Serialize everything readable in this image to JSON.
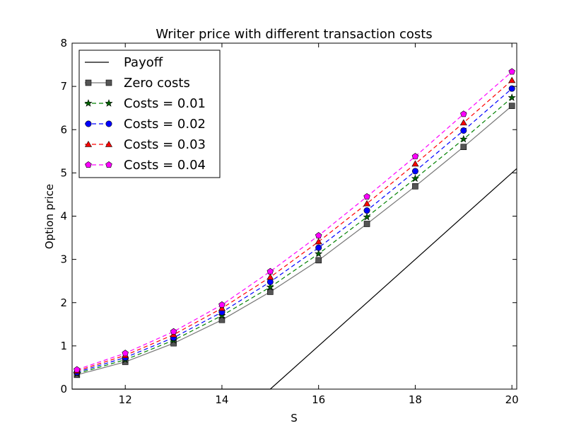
{
  "chart_data": {
    "type": "line",
    "title": "Writer price with different transaction costs",
    "xlabel": "S",
    "ylabel": "Option price",
    "xlim": [
      10.9,
      20.1
    ],
    "ylim": [
      0,
      8
    ],
    "xticks": [
      12,
      14,
      16,
      18,
      20
    ],
    "yticks": [
      0,
      1,
      2,
      3,
      4,
      5,
      6,
      7,
      8
    ],
    "grid": false,
    "legend_position": "top-left",
    "x": [
      11,
      12,
      13,
      14,
      15,
      16,
      17,
      18,
      19,
      20
    ],
    "series": [
      {
        "name": "Payoff",
        "style": "solid",
        "marker": "none",
        "color": "#000000",
        "x": [
          10.9,
          15,
          20.1
        ],
        "values": [
          0,
          0,
          5.1
        ]
      },
      {
        "name": "Zero costs",
        "style": "solid",
        "marker": "square",
        "color": "#555555",
        "line_color": "#777777",
        "values": [
          0.33,
          0.63,
          1.06,
          1.6,
          2.25,
          2.98,
          3.82,
          4.69,
          5.6,
          6.55
        ]
      },
      {
        "name": "Costs = 0.01",
        "style": "dashed",
        "marker": "star",
        "color": "#006400",
        "line_color": "#008000",
        "values": [
          0.36,
          0.68,
          1.13,
          1.7,
          2.36,
          3.13,
          3.98,
          4.87,
          5.78,
          6.74
        ]
      },
      {
        "name": "Costs = 0.02",
        "style": "dashed",
        "marker": "circle",
        "color": "#0000ff",
        "line_color": "#0000ff",
        "values": [
          0.39,
          0.73,
          1.19,
          1.78,
          2.48,
          3.27,
          4.13,
          5.04,
          5.98,
          6.95
        ]
      },
      {
        "name": "Costs = 0.03",
        "style": "dashed",
        "marker": "triangle",
        "color": "#ff0000",
        "line_color": "#ff0000",
        "values": [
          0.42,
          0.78,
          1.26,
          1.87,
          2.59,
          3.41,
          4.29,
          5.21,
          6.16,
          7.14
        ]
      },
      {
        "name": "Costs = 0.04",
        "style": "dashed",
        "marker": "pentagon",
        "color": "#ff00ff",
        "line_color": "#ff00ff",
        "values": [
          0.45,
          0.83,
          1.33,
          1.95,
          2.72,
          3.55,
          4.45,
          5.38,
          6.36,
          7.34
        ]
      }
    ]
  }
}
